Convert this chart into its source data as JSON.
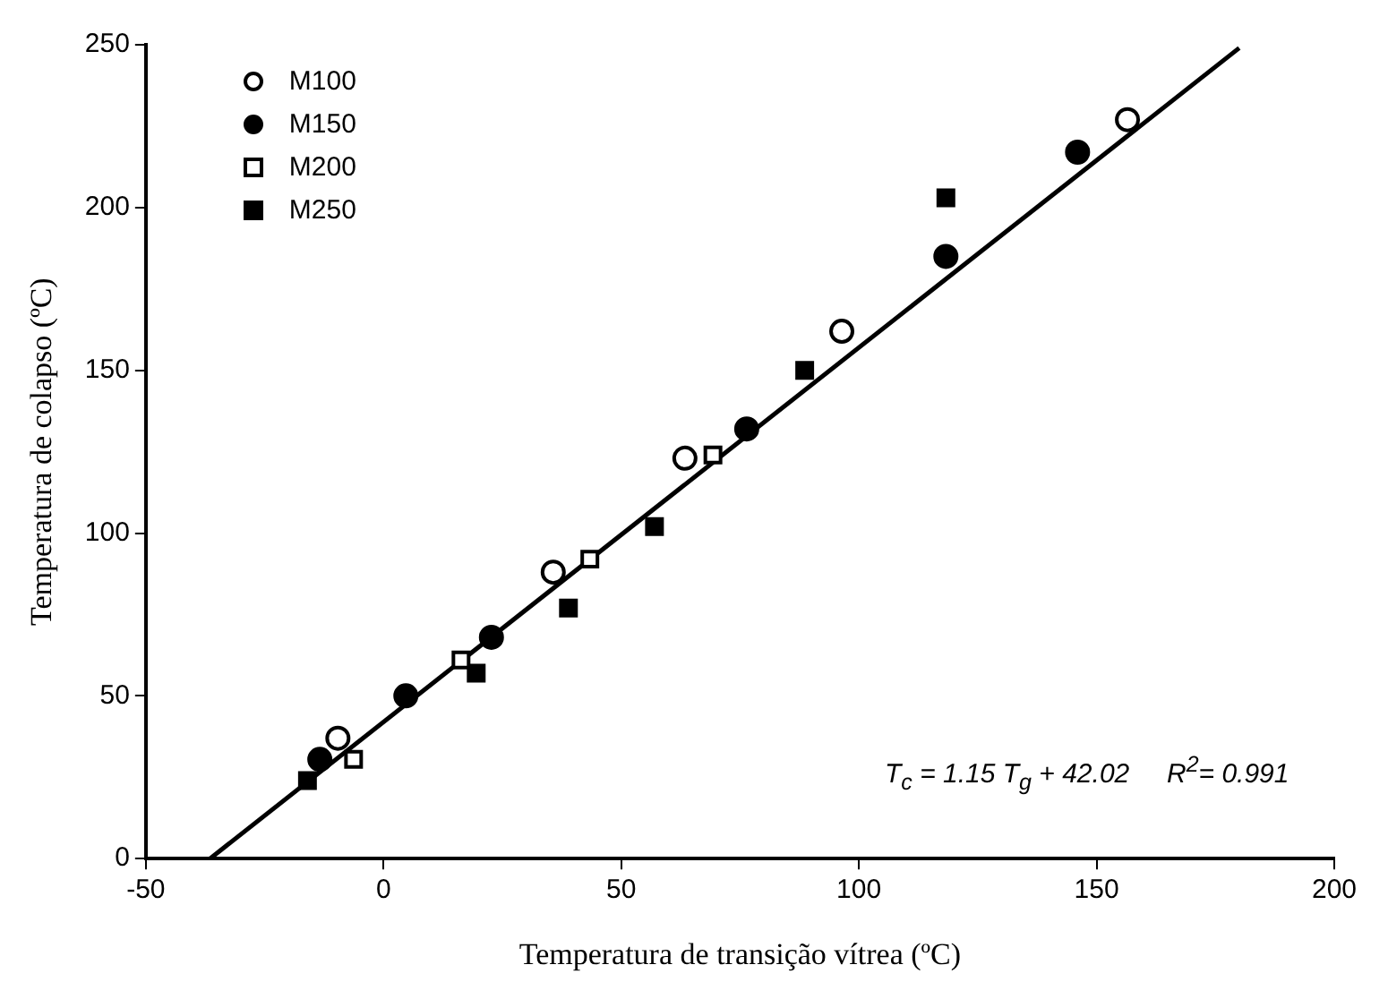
{
  "chart_data": {
    "type": "scatter",
    "xlabel": "Temperatura de transição vítrea (ºC)",
    "ylabel": "Temperatura de colapso (ºC)",
    "xlim": [
      -50,
      200
    ],
    "xticks": [
      -50,
      0,
      50,
      100,
      150,
      200
    ],
    "ylim": [
      0,
      250
    ],
    "yticks": [
      0,
      50,
      100,
      150,
      200,
      250
    ],
    "grid": false,
    "legend": "top left",
    "annotations": [
      "T$_{c}$ = 1.15 T$_{g}$ + 42.02     R$^{2}$= 0.991"
    ],
    "series": [
      {
        "name": "M100",
        "color": "#ffffff",
        "marker": "circle",
        "x": [
          -9.6,
          35.7,
          63.4,
          96.4,
          156.5
        ],
        "values": [
          37,
          88,
          123,
          162,
          227
        ]
      },
      {
        "name": "M150",
        "color": "#000000",
        "marker": "circle",
        "x": [
          -13.4,
          4.7,
          22.7,
          76.4,
          118.3,
          146
        ],
        "values": [
          30.5,
          50,
          68,
          132,
          185,
          217
        ]
      },
      {
        "name": "M200",
        "color": "#ffffff",
        "marker": "square",
        "x": [
          -6.3,
          16.3,
          43.4,
          69.3
        ],
        "values": [
          30.5,
          61,
          92,
          124
        ]
      },
      {
        "name": "M250",
        "color": "#000000",
        "marker": "square",
        "x": [
          -16,
          19.5,
          38.9,
          57,
          88.6,
          118.3
        ],
        "values": [
          24,
          57,
          77,
          102,
          150,
          203
        ]
      },
      {
        "type": "line",
        "color": "#000000",
        "marker": "none",
        "line_style": "solid",
        "x": [
          -36.5,
          180
        ],
        "values": [
          0,
          249
        ]
      }
    ]
  }
}
